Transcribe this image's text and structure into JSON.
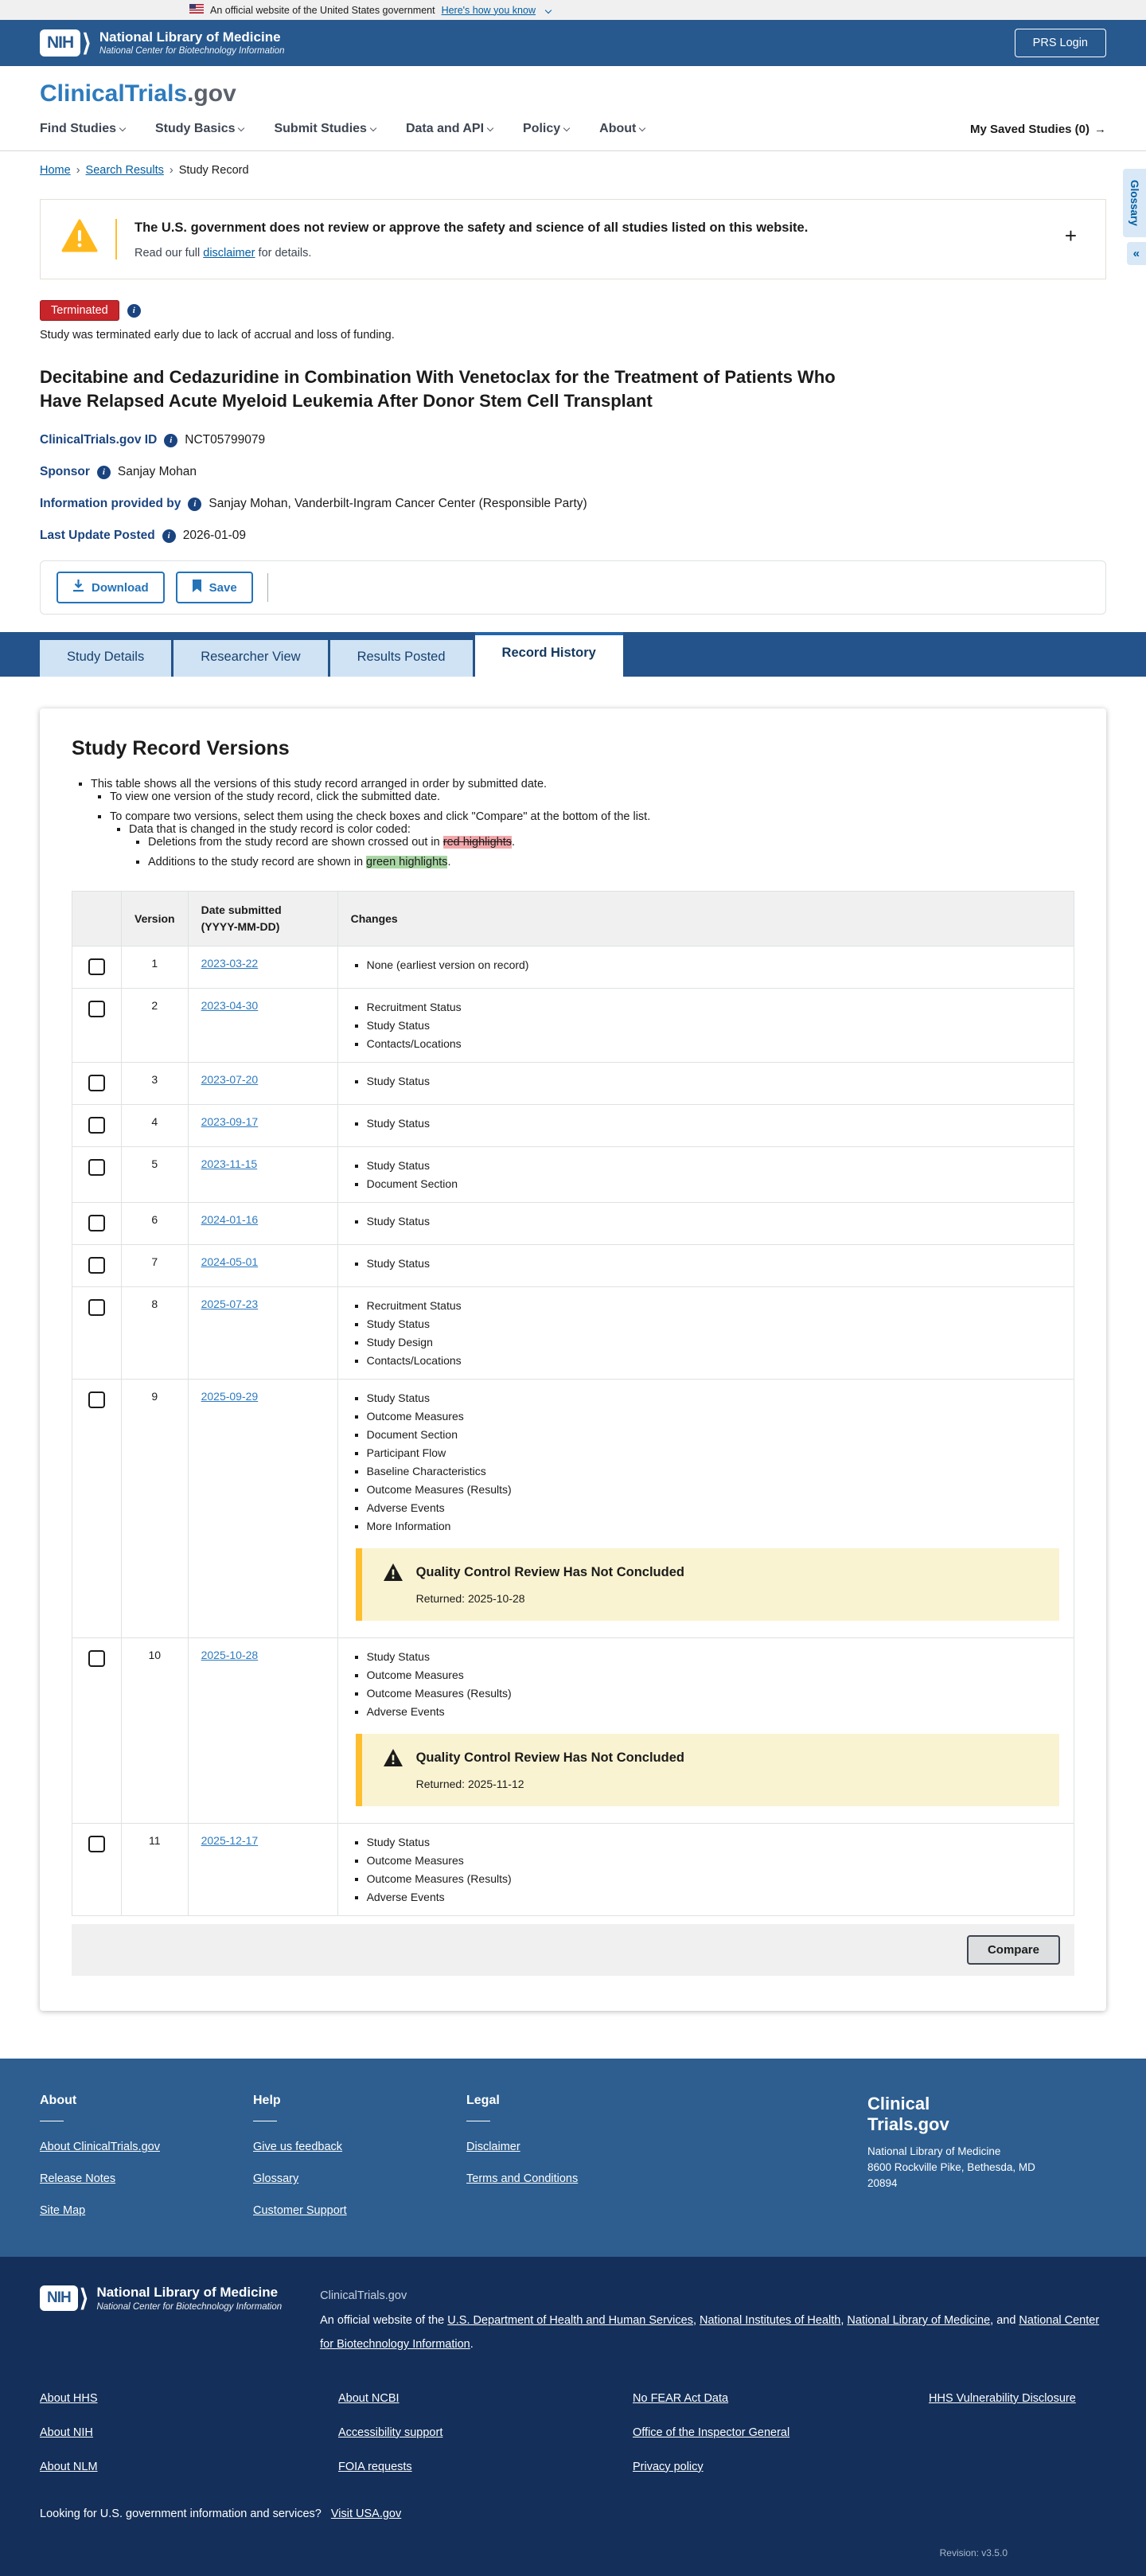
{
  "banner": {
    "text": "An official website of the United States government",
    "link": "Here's how you know"
  },
  "header": {
    "nih": "NIH",
    "nlm_title": "National Library of Medicine",
    "nlm_subtitle": "National Center for Biotechnology Information",
    "prs_login": "PRS Login"
  },
  "brand": {
    "main": "ClinicalTrials",
    "suffix": ".gov"
  },
  "nav": {
    "items": [
      "Find Studies",
      "Study Basics",
      "Submit Studies",
      "Data and API",
      "Policy",
      "About"
    ],
    "saved": "My Saved Studies (0)",
    "arrow": "→"
  },
  "breadcrumb": {
    "home": "Home",
    "search": "Search Results",
    "current": "Study Record",
    "sep": "›"
  },
  "glossary": {
    "label": "Glossary",
    "collapse": "«"
  },
  "warning": {
    "title": "The U.S. government does not review or approve the safety and science of all studies listed on this website.",
    "read_prefix": "Read our full ",
    "link": "disclaimer",
    "read_suffix": " for details.",
    "expand": "+"
  },
  "study": {
    "status": "Terminated",
    "status_note": "Study was terminated early due to lack of accrual and loss of funding.",
    "title": "Decitabine and Cedazuridine in Combination With Venetoclax for the Treatment of Patients Who Have Relapsed Acute Myeloid Leukemia After Donor Stem Cell Transplant",
    "fields": [
      {
        "label": "ClinicalTrials.gov ID",
        "value": "NCT05799079"
      },
      {
        "label": "Sponsor",
        "value": "Sanjay Mohan"
      },
      {
        "label": "Information provided by",
        "value": "Sanjay Mohan, Vanderbilt-Ingram Cancer Center (Responsible Party)"
      },
      {
        "label": "Last Update Posted",
        "value": "2026-01-09"
      }
    ]
  },
  "actions": {
    "download": "Download",
    "save": "Save"
  },
  "tabs": [
    {
      "label": "Study Details",
      "active": false
    },
    {
      "label": "Researcher View",
      "active": false
    },
    {
      "label": "Results Posted",
      "active": false
    },
    {
      "label": "Record History",
      "active": true
    }
  ],
  "versions": {
    "heading": "Study Record Versions",
    "intro": {
      "l1": "This table shows all the versions of this study record arranged in order by submitted date.",
      "l2": "To view one version of the study record, click the submitted date.",
      "l3": "To compare two versions, select them using the check boxes and click \"Compare\" at the bottom of the list.",
      "l4": "Data that is changed in the study record is color coded:",
      "l5_prefix": "Deletions from the study record are shown crossed out in ",
      "l5_highlight": "red highlights",
      "l5_suffix": ".",
      "l6_prefix": "Additions to the study record are shown in ",
      "l6_highlight": "green highlights",
      "l6_suffix": "."
    },
    "table": {
      "headers": {
        "version": "Version",
        "date_line1": "Date submitted",
        "date_line2": "(YYYY-MM-DD)",
        "changes": "Changes"
      },
      "alert_title": "Quality Control Review Has Not Concluded",
      "rows": [
        {
          "version": "1",
          "date": "2023-03-22",
          "changes": [
            "None (earliest version on record)"
          ]
        },
        {
          "version": "2",
          "date": "2023-04-30",
          "changes": [
            "Recruitment Status",
            "Study Status",
            "Contacts/Locations"
          ]
        },
        {
          "version": "3",
          "date": "2023-07-20",
          "changes": [
            "Study Status"
          ]
        },
        {
          "version": "4",
          "date": "2023-09-17",
          "changes": [
            "Study Status"
          ]
        },
        {
          "version": "5",
          "date": "2023-11-15",
          "changes": [
            "Study Status",
            "Document Section"
          ]
        },
        {
          "version": "6",
          "date": "2024-01-16",
          "changes": [
            "Study Status"
          ]
        },
        {
          "version": "7",
          "date": "2024-05-01",
          "changes": [
            "Study Status"
          ]
        },
        {
          "version": "8",
          "date": "2025-07-23",
          "changes": [
            "Recruitment Status",
            "Study Status",
            "Study Design",
            "Contacts/Locations"
          ]
        },
        {
          "version": "9",
          "date": "2025-09-29",
          "changes": [
            "Study Status",
            "Outcome Measures",
            "Document Section",
            "Participant Flow",
            "Baseline Characteristics",
            "Outcome Measures (Results)",
            "Adverse Events",
            "More Information"
          ],
          "alert_returned": "Returned: 2025-10-28"
        },
        {
          "version": "10",
          "date": "2025-10-28",
          "changes": [
            "Study Status",
            "Outcome Measures",
            "Outcome Measures (Results)",
            "Adverse Events"
          ],
          "alert_returned": "Returned: 2025-11-12"
        },
        {
          "version": "11",
          "date": "2025-12-17",
          "changes": [
            "Study Status",
            "Outcome Measures",
            "Outcome Measures (Results)",
            "Adverse Events"
          ]
        }
      ],
      "compare": "Compare"
    }
  },
  "footer_top": {
    "columns": [
      {
        "heading": "About",
        "links": [
          "About ClinicalTrials.gov",
          "Release Notes",
          "Site Map"
        ]
      },
      {
        "heading": "Help",
        "links": [
          "Give us feedback",
          "Glossary",
          "Customer Support"
        ]
      },
      {
        "heading": "Legal",
        "links": [
          "Disclaimer",
          "Terms and Conditions"
        ]
      }
    ],
    "brand1": "Clinical",
    "brand2": "Trials.gov",
    "addr1": "National Library of Medicine",
    "addr2": "8600 Rockville Pike, Bethesda, MD",
    "addr3": "20894"
  },
  "footer_bottom": {
    "nih": "NIH",
    "nlm_title": "National Library of Medicine",
    "nlm_subtitle": "National Center for Biotechnology Information",
    "site_name": "ClinicalTrials.gov",
    "official_prefix": "An official website of the ",
    "official_links": [
      "U.S. Department of Health and Human Services",
      "National Institutes of Health",
      "National Library of Medicine",
      "National Center for Biotechnology Information"
    ],
    "official_suffix": ".",
    "link_columns": [
      [
        "About HHS",
        "About NIH",
        "About NLM"
      ],
      [
        "About NCBI",
        "Accessibility support",
        "FOIA requests"
      ],
      [
        "No FEAR Act Data",
        "Office of the Inspector General",
        "Privacy policy"
      ],
      [
        "HHS Vulnerability Disclosure"
      ]
    ],
    "usa_text": "Looking for U.S. government information and services?",
    "usa_link": "Visit USA.gov",
    "revision": "Revision: v3.5.0"
  }
}
